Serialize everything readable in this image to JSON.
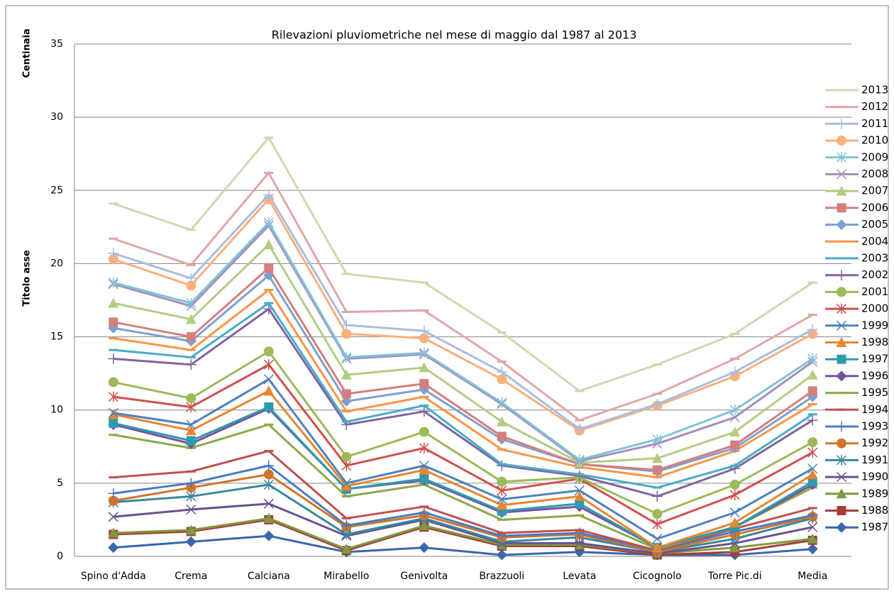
{
  "chart_data": {
    "type": "line",
    "stacked": true,
    "title": "Rilevazioni pluviometriche nel mese di maggio dal 1987 al 2013",
    "unit_label": "Centinaia",
    "y_axis_label": "Titolo asse",
    "categories": [
      "Spino d'Adda",
      "Crema",
      "Calciana",
      "Mirabello",
      "Genivolta",
      "Brazzuoli",
      "Levata",
      "Cicognolo",
      "Torre Pic.di",
      "Media"
    ],
    "ylim": [
      0,
      35
    ],
    "yticks": [
      0,
      5,
      10,
      15,
      20,
      25,
      30,
      35
    ],
    "grid": true,
    "legend": "right",
    "series": [
      {
        "name": "1987",
        "color": "#3a66ad",
        "marker": "diamond",
        "values": [
          0.6,
          1.0,
          1.4,
          0.3,
          0.6,
          0.1,
          0.3,
          0.1,
          0.1,
          0.5
        ]
      },
      {
        "name": "1988",
        "color": "#a83c39",
        "marker": "square",
        "values": [
          0.9,
          0.7,
          1.1,
          0.1,
          1.4,
          0.6,
          0.4,
          0.0,
          0.2,
          0.6
        ]
      },
      {
        "name": "1989",
        "color": "#7f9a3f",
        "marker": "triangle",
        "values": [
          0.1,
          0.1,
          0.1,
          0.1,
          0.1,
          0.1,
          0.1,
          0.1,
          0.3,
          0.1
        ]
      },
      {
        "name": "1990",
        "color": "#6a5190",
        "marker": "x",
        "values": [
          1.1,
          1.4,
          1.0,
          0.9,
          0.4,
          0.1,
          0.1,
          0.0,
          0.3,
          0.8
        ]
      },
      {
        "name": "1991",
        "color": "#35899f",
        "marker": "star",
        "values": [
          1.0,
          0.9,
          1.3,
          0.1,
          0.1,
          0.1,
          0.4,
          0.1,
          0.3,
          0.6
        ]
      },
      {
        "name": "1992",
        "color": "#d2752b",
        "marker": "circle",
        "values": [
          0.1,
          0.6,
          0.7,
          0.5,
          0.2,
          0.3,
          0.2,
          0.0,
          0.3,
          0.1
        ]
      },
      {
        "name": "1993",
        "color": "#4a7bc4",
        "marker": "plus",
        "values": [
          0.5,
          0.3,
          0.6,
          0.1,
          0.2,
          0.1,
          0.1,
          0.1,
          0.2,
          0.1
        ]
      },
      {
        "name": "1994",
        "color": "#c0504d",
        "marker": "dash",
        "values": [
          1.1,
          0.8,
          1.0,
          0.5,
          0.4,
          0.2,
          0.2,
          0.0,
          0.2,
          0.5
        ]
      },
      {
        "name": "1995",
        "color": "#8aab48",
        "marker": "dash",
        "values": [
          2.9,
          1.6,
          1.8,
          1.5,
          1.5,
          0.9,
          1.0,
          0.1,
          0.1,
          1.4
        ]
      },
      {
        "name": "1996",
        "color": "#7a4fa0",
        "marker": "diamond",
        "values": [
          0.7,
          0.3,
          1.1,
          0.5,
          0.3,
          0.5,
          0.6,
          0.1,
          0.0,
          0.2
        ]
      },
      {
        "name": "1997",
        "color": "#2f9aae",
        "marker": "square",
        "values": [
          0.1,
          0.2,
          0.1,
          0.0,
          0.1,
          0.1,
          0.2,
          0.0,
          0.0,
          0.2
        ]
      },
      {
        "name": "1998",
        "color": "#e8862e",
        "marker": "triangle",
        "values": [
          0.6,
          0.7,
          1.1,
          0.2,
          0.6,
          0.4,
          0.5,
          0.0,
          0.3,
          0.5
        ]
      },
      {
        "name": "1999",
        "color": "#4f81bd",
        "marker": "x",
        "values": [
          0.1,
          0.4,
          0.8,
          0.2,
          0.3,
          0.4,
          0.4,
          0.6,
          0.7,
          0.4
        ]
      },
      {
        "name": "2000",
        "color": "#d0504d",
        "marker": "star",
        "values": [
          1.1,
          1.2,
          1.0,
          1.2,
          1.2,
          0.6,
          0.8,
          1.0,
          1.2,
          1.1
        ]
      },
      {
        "name": "2001",
        "color": "#9bbb59",
        "marker": "circle",
        "values": [
          1.0,
          0.6,
          0.9,
          0.6,
          1.1,
          0.6,
          0.1,
          0.7,
          0.7,
          0.7
        ]
      },
      {
        "name": "2002",
        "color": "#8064a2",
        "marker": "plus",
        "values": [
          1.6,
          2.3,
          2.9,
          2.2,
          1.4,
          1.1,
          0.1,
          1.2,
          1.1,
          1.5
        ]
      },
      {
        "name": "2003",
        "color": "#4bacc6",
        "marker": "dash",
        "values": [
          0.6,
          0.5,
          0.4,
          0.2,
          0.4,
          0.1,
          0.1,
          0.6,
          0.2,
          0.4
        ]
      },
      {
        "name": "2004",
        "color": "#f79646",
        "marker": "dash",
        "values": [
          0.8,
          0.5,
          0.9,
          0.7,
          0.6,
          1.0,
          0.5,
          0.7,
          1.0,
          0.7
        ]
      },
      {
        "name": "2005",
        "color": "#7f9fd0",
        "marker": "diamond",
        "values": [
          0.7,
          0.6,
          1.0,
          0.7,
          0.5,
          0.7,
          0.2,
          0.4,
          0.2,
          0.5
        ]
      },
      {
        "name": "2006",
        "color": "#d37f7d",
        "marker": "square",
        "values": [
          0.4,
          0.3,
          0.5,
          0.5,
          0.4,
          0.2,
          0.0,
          0.1,
          0.2,
          0.4
        ]
      },
      {
        "name": "2007",
        "color": "#b3cd83",
        "marker": "triangle",
        "values": [
          1.3,
          1.2,
          1.6,
          1.3,
          1.1,
          1.0,
          0.1,
          0.8,
          0.9,
          1.1
        ]
      },
      {
        "name": "2008",
        "color": "#a48fbd",
        "marker": "x",
        "values": [
          1.3,
          0.9,
          1.3,
          1.1,
          0.9,
          1.2,
          0.1,
          1.0,
          1.0,
          0.9
        ]
      },
      {
        "name": "2009",
        "color": "#80c3d6",
        "marker": "star",
        "values": [
          0.1,
          0.2,
          0.2,
          0.1,
          0.1,
          0.1,
          0.1,
          0.3,
          0.5,
          0.2
        ]
      },
      {
        "name": "2010",
        "color": "#f9b07c",
        "marker": "circle",
        "values": [
          1.6,
          1.2,
          1.6,
          1.6,
          1.0,
          1.6,
          2.0,
          2.3,
          2.3,
          1.7
        ]
      },
      {
        "name": "2011",
        "color": "#a9bde0",
        "marker": "plus",
        "values": [
          0.4,
          0.5,
          0.3,
          0.6,
          0.5,
          0.5,
          0.1,
          0.1,
          0.3,
          0.3
        ]
      },
      {
        "name": "2012",
        "color": "#dfa7a6",
        "marker": "dash",
        "values": [
          1.0,
          0.9,
          1.5,
          0.9,
          1.4,
          0.7,
          0.6,
          0.7,
          0.9,
          1.0
        ]
      },
      {
        "name": "2013",
        "color": "#c9dbad",
        "marker": "dash",
        "values": [
          2.4,
          2.4,
          2.4,
          2.6,
          1.9,
          2.0,
          2.0,
          2.0,
          1.7,
          2.2
        ]
      }
    ]
  }
}
